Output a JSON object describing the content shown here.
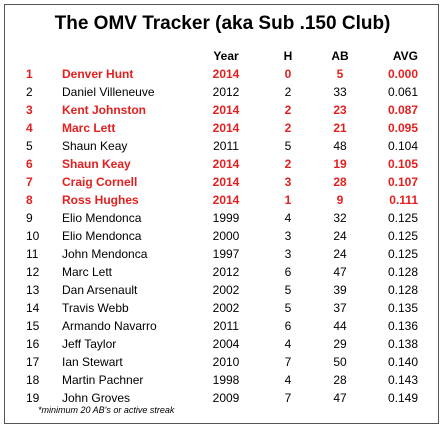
{
  "title": "The OMV Tracker (aka Sub .150 Club)",
  "table": {
    "header": [
      "",
      "",
      "Year",
      "H",
      "AB",
      "AVG"
    ],
    "rows": [
      [
        1,
        "Denver Hunt",
        2014,
        0,
        5,
        "0.000"
      ],
      [
        2,
        "Daniel Villeneuve",
        2012,
        2,
        33,
        "0.061"
      ],
      [
        3,
        "Kent Johnston",
        2014,
        2,
        23,
        "0.087"
      ],
      [
        4,
        "Marc Lett",
        2014,
        2,
        21,
        "0.095"
      ],
      [
        5,
        "Shaun Keay",
        2011,
        5,
        48,
        "0.104"
      ],
      [
        6,
        "Shaun Keay",
        2014,
        2,
        19,
        "0.105"
      ],
      [
        7,
        "Craig Cornell",
        2014,
        3,
        28,
        "0.107"
      ],
      [
        8,
        "Ross Hughes",
        2014,
        1,
        9,
        "0.111"
      ],
      [
        9,
        "Elio Mendonca",
        1999,
        4,
        32,
        "0.125"
      ],
      [
        10,
        "Elio Mendonca",
        2000,
        3,
        24,
        "0.125"
      ],
      [
        11,
        "John Mendonca",
        1997,
        3,
        24,
        "0.125"
      ],
      [
        12,
        "Marc Lett",
        2012,
        6,
        47,
        "0.128"
      ],
      [
        13,
        "Dan Arsenault",
        2002,
        5,
        39,
        "0.128"
      ],
      [
        14,
        "Travis Webb",
        2002,
        5,
        37,
        "0.135"
      ],
      [
        15,
        "Armando Navarro",
        2011,
        6,
        44,
        "0.136"
      ],
      [
        16,
        "Jeff Taylor",
        2004,
        4,
        29,
        "0.138"
      ],
      [
        17,
        "Ian Stewart",
        2010,
        7,
        50,
        "0.140"
      ],
      [
        18,
        "Martin Pachner",
        1998,
        4,
        28,
        "0.143"
      ],
      [
        19,
        "John Groves",
        2009,
        7,
        47,
        "0.149"
      ]
    ],
    "highlighted": [
      true,
      false,
      true,
      true,
      false,
      true,
      true,
      true,
      false,
      false,
      false,
      false,
      false,
      false,
      false,
      false,
      false,
      false,
      false
    ]
  },
  "footnote": "*minimum 20 AB's or active streak"
}
